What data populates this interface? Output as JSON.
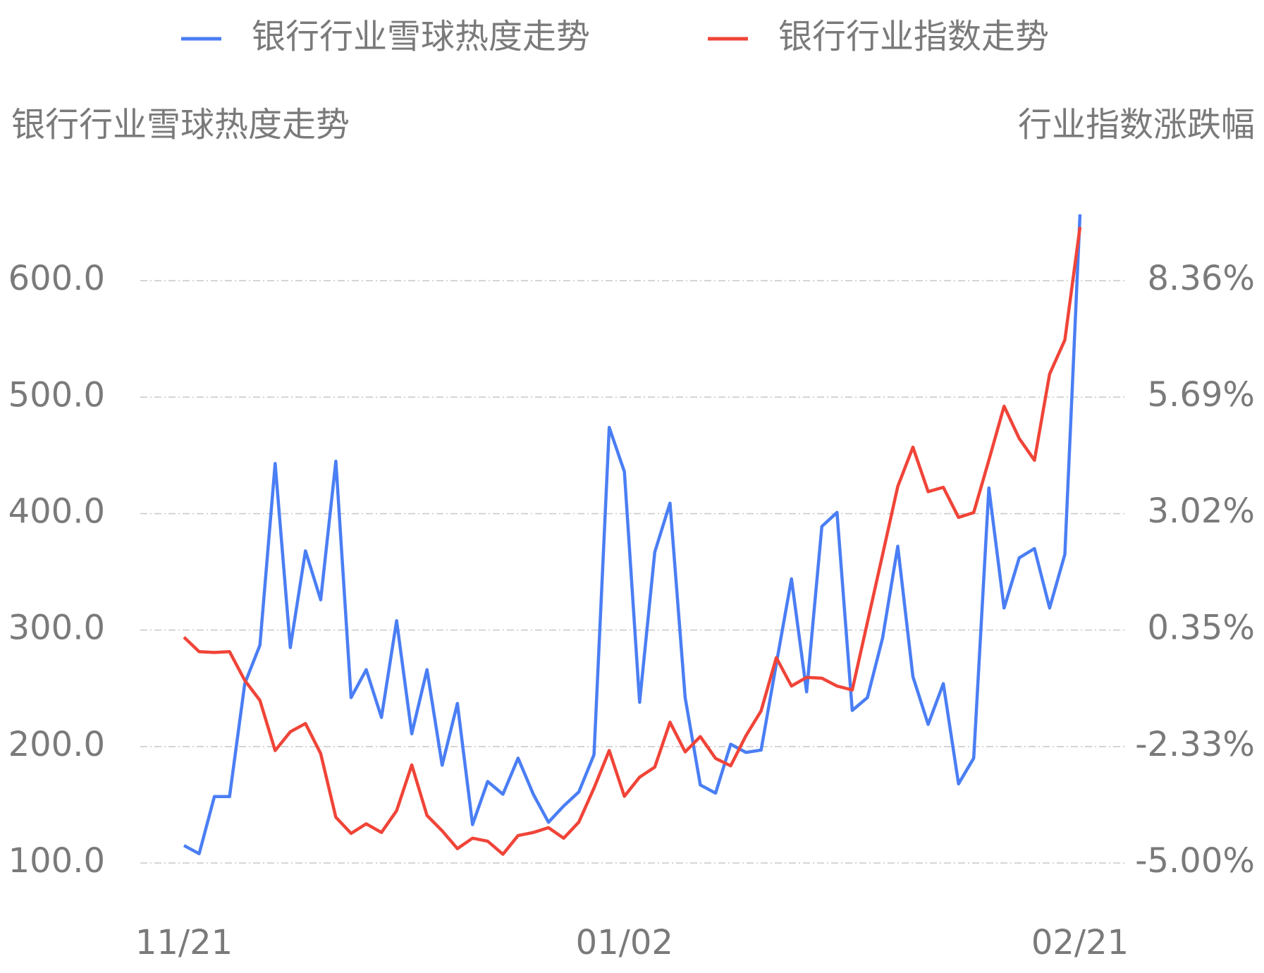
{
  "chart_data": {
    "type": "line",
    "y_label": "银行行业雪球热度走势",
    "y2_label": "行业指数涨跌幅",
    "categories": [
      "11/21",
      null,
      null,
      null,
      null,
      null,
      null,
      null,
      null,
      null,
      null,
      null,
      null,
      null,
      null,
      null,
      null,
      null,
      null,
      null,
      null,
      null,
      null,
      null,
      null,
      null,
      null,
      null,
      null,
      "01/02",
      null,
      null,
      null,
      null,
      null,
      null,
      null,
      null,
      null,
      null,
      null,
      null,
      null,
      null,
      null,
      null,
      null,
      null,
      null,
      null,
      null,
      null,
      null,
      null,
      null,
      null,
      null,
      null,
      null,
      "02/21"
    ],
    "series": [
      {
        "name": "银行行业雪球热度走势",
        "color": "#4a7ef4",
        "values": [
          115,
          108,
          157,
          157,
          254,
          287,
          443,
          285,
          368,
          326,
          445,
          242,
          266,
          225,
          308,
          211,
          266,
          184,
          237,
          133,
          170,
          159,
          190,
          159,
          135,
          149,
          161,
          193,
          474,
          436,
          238,
          367,
          409,
          242,
          167,
          160,
          202,
          195,
          197,
          271,
          344,
          247,
          389,
          401,
          231,
          242,
          293,
          372,
          260,
          219,
          254,
          168,
          190,
          422,
          319,
          362,
          370,
          319,
          365,
          657
        ]
      },
      {
        "name": "银行行业指数走势",
        "color": "#f04438",
        "axis": "y2",
        "values": [
          0.18,
          -0.15,
          -0.17,
          -0.15,
          -0.81,
          -1.27,
          -2.42,
          -1.99,
          -1.8,
          -2.49,
          -3.95,
          -4.32,
          -4.1,
          -4.3,
          -3.8,
          -2.75,
          -3.91,
          -4.26,
          -4.67,
          -4.43,
          -4.5,
          -4.8,
          -4.37,
          -4.3,
          -4.19,
          -4.43,
          -4.06,
          -3.28,
          -2.42,
          -3.47,
          -3.03,
          -2.8,
          -1.77,
          -2.45,
          -2.1,
          -2.6,
          -2.77,
          -2.08,
          -1.51,
          -0.29,
          -0.94,
          -0.74,
          -0.76,
          -0.94,
          -1.03,
          0.52,
          2.07,
          3.64,
          4.54,
          3.52,
          3.62,
          2.93,
          3.04,
          4.24,
          5.48,
          4.74,
          4.24,
          6.22,
          7.0,
          9.59
        ]
      }
    ],
    "ylim": [
      100,
      660
    ],
    "yticks": [
      {
        "value": 100,
        "label": "100.0"
      },
      {
        "value": 200,
        "label": "200.0"
      },
      {
        "value": 300,
        "label": "300.0"
      },
      {
        "value": 400,
        "label": "400.0"
      },
      {
        "value": 500,
        "label": "500.0"
      },
      {
        "value": 600,
        "label": "600.0"
      }
    ],
    "y2lim": [
      -5,
      9.963
    ],
    "y2ticks": [
      {
        "value": -5,
        "label": "-5.00%"
      },
      {
        "value": -2.33,
        "label": "-2.33%"
      },
      {
        "value": 0.35,
        "label": "0.35%"
      },
      {
        "value": 3.02,
        "label": "3.02%"
      },
      {
        "value": 5.69,
        "label": "5.69%"
      },
      {
        "value": 8.36,
        "label": "8.36%"
      }
    ],
    "grid": true
  }
}
